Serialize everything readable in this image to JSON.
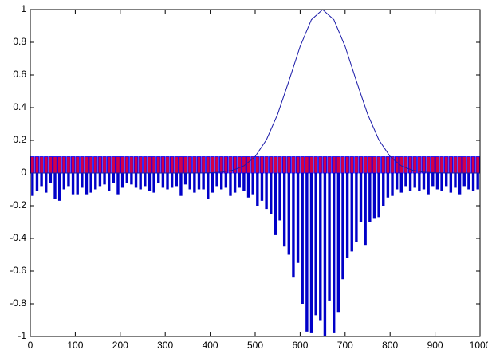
{
  "chart_data": {
    "type": "bar",
    "xlim": [
      0,
      1000
    ],
    "ylim": [
      -1,
      1
    ],
    "xticks": [
      0,
      100,
      200,
      300,
      400,
      500,
      600,
      700,
      800,
      900,
      1000
    ],
    "yticks": [
      -1,
      -0.8,
      -0.6,
      -0.4,
      -0.2,
      0,
      0.2,
      0.4,
      0.6,
      0.8,
      1
    ],
    "x": [
      5,
      15,
      25,
      35,
      45,
      55,
      65,
      75,
      85,
      95,
      105,
      115,
      125,
      135,
      145,
      155,
      165,
      175,
      185,
      195,
      205,
      215,
      225,
      235,
      245,
      255,
      265,
      275,
      285,
      295,
      305,
      315,
      325,
      335,
      345,
      355,
      365,
      375,
      385,
      395,
      405,
      415,
      425,
      435,
      445,
      455,
      465,
      475,
      485,
      495,
      505,
      515,
      525,
      535,
      545,
      555,
      565,
      575,
      585,
      595,
      605,
      615,
      625,
      635,
      645,
      655,
      665,
      675,
      685,
      695,
      705,
      715,
      725,
      735,
      745,
      755,
      765,
      775,
      785,
      795,
      805,
      815,
      825,
      835,
      845,
      855,
      865,
      875,
      885,
      895,
      905,
      915,
      925,
      935,
      945,
      955,
      965,
      975,
      985,
      995
    ],
    "series": [
      {
        "color": "#d0004a",
        "edgecolor": "#0000ff",
        "values": [
          0.1,
          0.1,
          0.1,
          0.1,
          0.1,
          0.1,
          0.1,
          0.1,
          0.1,
          0.1,
          0.1,
          0.1,
          0.1,
          0.1,
          0.1,
          0.1,
          0.1,
          0.1,
          0.1,
          0.1,
          0.1,
          0.1,
          0.1,
          0.1,
          0.1,
          0.1,
          0.1,
          0.1,
          0.1,
          0.1,
          0.1,
          0.1,
          0.1,
          0.1,
          0.1,
          0.1,
          0.1,
          0.1,
          0.1,
          0.1,
          0.1,
          0.1,
          0.1,
          0.1,
          0.1,
          0.1,
          0.1,
          0.1,
          0.1,
          0.1,
          0.1,
          0.1,
          0.1,
          0.1,
          0.1,
          0.1,
          0.1,
          0.1,
          0.1,
          0.1,
          0.1,
          0.1,
          0.1,
          0.1,
          0.1,
          0.1,
          0.1,
          0.1,
          0.1,
          0.1,
          0.1,
          0.1,
          0.1,
          0.1,
          0.1,
          0.1,
          0.1,
          0.1,
          0.1,
          0.1,
          0.1,
          0.1,
          0.1,
          0.1,
          0.1,
          0.1,
          0.1,
          0.1,
          0.1,
          0.1,
          0.1,
          0.1,
          0.1,
          0.1,
          0.1,
          0.1,
          0.1,
          0.1,
          0.1,
          0.1
        ]
      },
      {
        "color": "#0000c8",
        "values": [
          -0.14,
          -0.11,
          -0.08,
          -0.12,
          -0.06,
          -0.16,
          -0.17,
          -0.1,
          -0.08,
          -0.13,
          -0.13,
          -0.09,
          -0.13,
          -0.12,
          -0.1,
          -0.08,
          -0.07,
          -0.11,
          -0.06,
          -0.13,
          -0.09,
          -0.06,
          -0.07,
          -0.09,
          -0.1,
          -0.08,
          -0.11,
          -0.12,
          -0.06,
          -0.09,
          -0.1,
          -0.09,
          -0.08,
          -0.14,
          -0.07,
          -0.1,
          -0.12,
          -0.1,
          -0.1,
          -0.16,
          -0.12,
          -0.08,
          -0.1,
          -0.09,
          -0.14,
          -0.12,
          -0.09,
          -0.11,
          -0.15,
          -0.13,
          -0.2,
          -0.17,
          -0.22,
          -0.25,
          -0.38,
          -0.29,
          -0.45,
          -0.5,
          -0.64,
          -0.55,
          -0.8,
          -0.97,
          -0.98,
          -0.87,
          -0.9,
          -1,
          -0.78,
          -0.98,
          -0.85,
          -0.65,
          -0.52,
          -0.48,
          -0.42,
          -0.3,
          -0.44,
          -0.3,
          -0.28,
          -0.27,
          -0.2,
          -0.15,
          -0.14,
          -0.1,
          -0.12,
          -0.08,
          -0.11,
          -0.09,
          -0.11,
          -0.1,
          -0.13,
          -0.08,
          -0.1,
          -0.11,
          -0.08,
          -0.12,
          -0.09,
          -0.13,
          -0.08,
          -0.1,
          -0.11,
          -0.1
        ]
      },
      {
        "type": "line",
        "color": "#1a1aa8",
        "x": [
          0,
          25,
          50,
          75,
          100,
          125,
          150,
          175,
          200,
          225,
          250,
          275,
          300,
          325,
          350,
          375,
          400,
          425,
          450,
          475,
          500,
          525,
          550,
          575,
          600,
          625,
          650,
          675,
          700,
          725,
          750,
          775,
          800,
          825,
          850,
          875,
          900,
          925,
          950,
          975,
          1000
        ],
        "values": [
          0,
          0,
          0,
          0,
          0,
          0,
          0,
          0,
          0,
          0,
          0,
          0,
          0,
          0,
          0,
          0.0004,
          0.0017,
          0.0057,
          0.0169,
          0.044,
          0.101,
          0.203,
          0.36,
          0.563,
          0.775,
          0.938,
          1,
          0.938,
          0.775,
          0.563,
          0.36,
          0.203,
          0.101,
          0.044,
          0.0169,
          0.0057,
          0.0017,
          0.0004,
          0.0001,
          0,
          0
        ]
      }
    ]
  }
}
